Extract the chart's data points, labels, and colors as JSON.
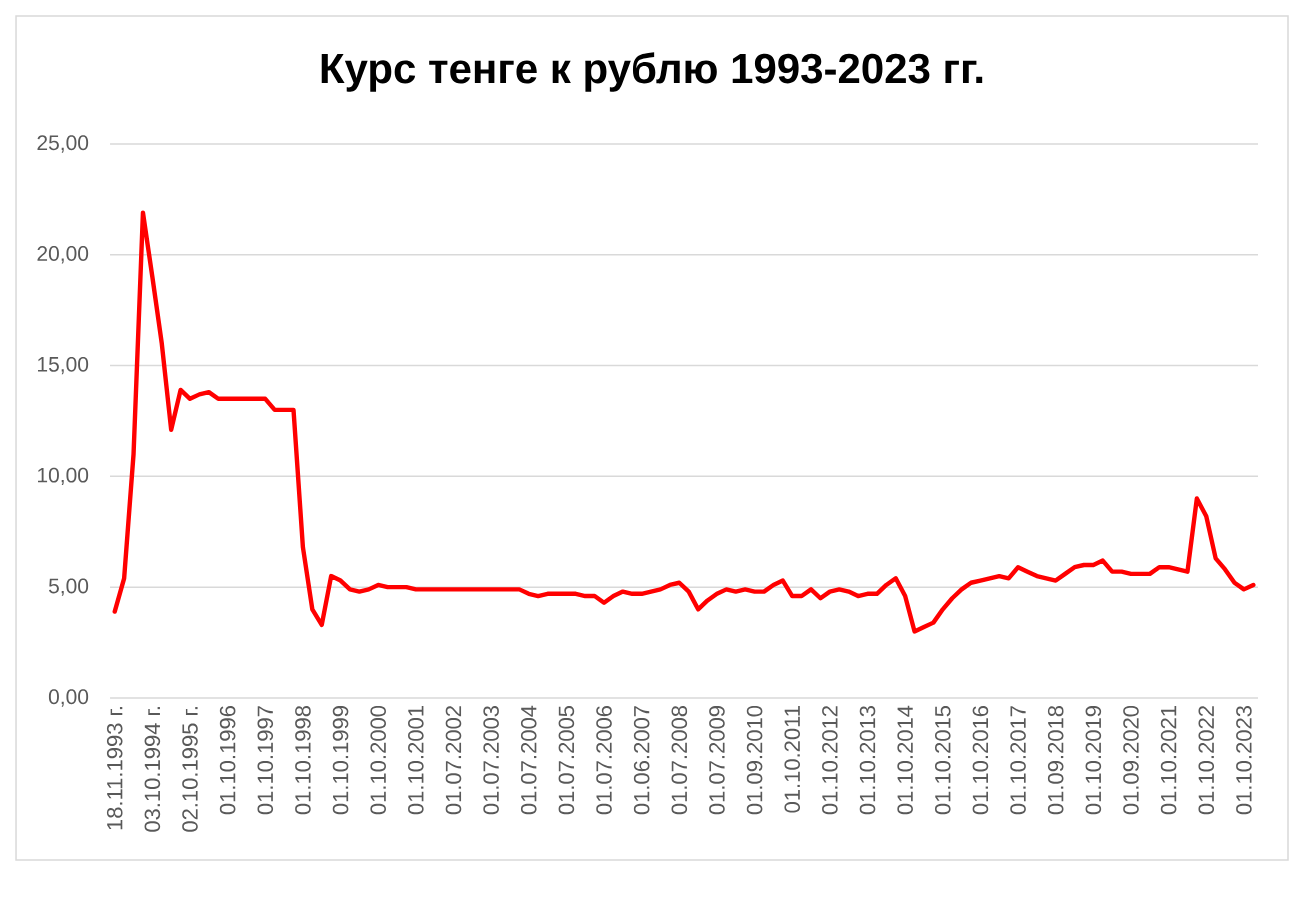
{
  "chart_data": {
    "type": "line",
    "title": "Курс тенге к рублю 1993-2023 гг.",
    "categories": [
      "18.11.1993 г.",
      null,
      null,
      null,
      "03.10.1994 г.",
      null,
      null,
      null,
      "02.10.1995 г.",
      null,
      null,
      null,
      "01.10.1996",
      null,
      null,
      null,
      "01.10.1997",
      null,
      null,
      null,
      "01.10.1998",
      null,
      null,
      null,
      "01.10.1999",
      null,
      null,
      null,
      "01.10.2000",
      null,
      null,
      null,
      "01.10.2001",
      null,
      null,
      null,
      "01.07.2002",
      null,
      null,
      null,
      "01.07.2003",
      null,
      null,
      null,
      "01.07.2004",
      null,
      null,
      null,
      "01.07.2005",
      null,
      null,
      null,
      "01.07.2006",
      null,
      null,
      null,
      "01.06.2007",
      null,
      null,
      null,
      "01.07.2008",
      null,
      null,
      null,
      "01.07.2009",
      null,
      null,
      null,
      "01.09.2010",
      null,
      null,
      null,
      "01.10.2011",
      null,
      null,
      null,
      "01.10.2012",
      null,
      null,
      null,
      "01.10.2013",
      null,
      null,
      null,
      "01.10.2014",
      null,
      null,
      null,
      "01.10.2015",
      null,
      null,
      null,
      "01.10.2016",
      null,
      null,
      null,
      "01.10.2017",
      null,
      null,
      null,
      "01.09.2018",
      null,
      null,
      null,
      "01.10.2019",
      null,
      null,
      null,
      "01.09.2020",
      null,
      null,
      null,
      "01.10.2021",
      null,
      null,
      null,
      "01.10.2022",
      null,
      null,
      null,
      "01.10.2023",
      null
    ],
    "values": [
      3.9,
      5.4,
      11.0,
      21.9,
      19.0,
      16.0,
      12.1,
      13.9,
      13.5,
      13.7,
      13.8,
      13.5,
      13.5,
      13.5,
      13.5,
      13.5,
      13.5,
      13.0,
      13.0,
      13.0,
      6.8,
      4.0,
      3.3,
      5.5,
      5.3,
      4.9,
      4.8,
      4.9,
      5.1,
      5.0,
      5.0,
      5.0,
      4.9,
      4.9,
      4.9,
      4.9,
      4.9,
      4.9,
      4.9,
      4.9,
      4.9,
      4.9,
      4.9,
      4.9,
      4.7,
      4.6,
      4.7,
      4.7,
      4.7,
      4.7,
      4.6,
      4.6,
      4.3,
      4.6,
      4.8,
      4.7,
      4.7,
      4.8,
      4.9,
      5.1,
      5.2,
      4.8,
      4.0,
      4.4,
      4.7,
      4.9,
      4.8,
      4.9,
      4.8,
      4.8,
      5.1,
      5.3,
      4.6,
      4.6,
      4.9,
      4.5,
      4.8,
      4.9,
      4.8,
      4.6,
      4.7,
      4.7,
      5.1,
      5.4,
      4.6,
      3.0,
      3.2,
      3.4,
      4.0,
      4.5,
      4.9,
      5.2,
      5.3,
      5.4,
      5.5,
      5.4,
      5.9,
      5.7,
      5.5,
      5.4,
      5.3,
      5.6,
      5.9,
      6.0,
      6.0,
      6.2,
      5.7,
      5.7,
      5.6,
      5.6,
      5.6,
      5.9,
      5.9,
      5.8,
      5.7,
      9.0,
      8.2,
      6.3,
      5.8,
      5.2,
      4.9,
      5.1
    ],
    "color": "#ff0000",
    "ylim": [
      0,
      25
    ],
    "yticks": [
      {
        "value": 0,
        "label": "0,00"
      },
      {
        "value": 5,
        "label": "5,00"
      },
      {
        "value": 10,
        "label": "10,00"
      },
      {
        "value": 15,
        "label": "15,00"
      },
      {
        "value": 20,
        "label": "20,00"
      },
      {
        "value": 25,
        "label": "25,00"
      }
    ],
    "grid": "y",
    "line_style": "solid"
  }
}
